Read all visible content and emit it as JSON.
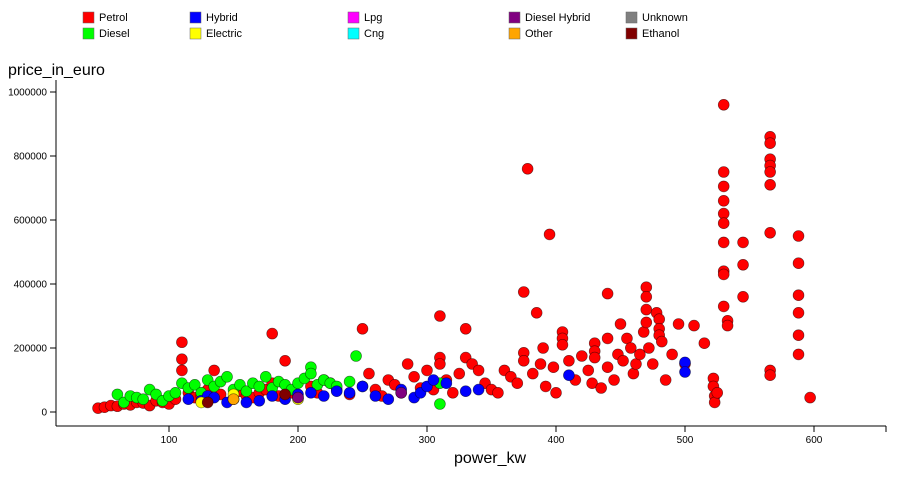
{
  "chart_data": {
    "type": "scatter",
    "xlabel": "power_kw",
    "ylabel": "price_in_euro",
    "xlim": [
      0,
      645
    ],
    "ylim": [
      -40000,
      1050000
    ],
    "x_ticks": [
      100,
      200,
      300,
      400,
      500,
      600
    ],
    "y_ticks": [
      0,
      200000,
      400000,
      600000,
      800000,
      1000000
    ],
    "x_tick_labels": [
      "100",
      "200",
      "300",
      "400",
      "500",
      "600"
    ],
    "y_tick_labels": [
      "0",
      "200000",
      "400000",
      "600000",
      "800000",
      "1000000"
    ],
    "grid": false,
    "legend_position": "top",
    "legend": [
      {
        "name": "Petrol",
        "color": "#ff0000"
      },
      {
        "name": "Hybrid",
        "color": "#0000ff"
      },
      {
        "name": "Lpg",
        "color": "#ff00ff"
      },
      {
        "name": "Diesel Hybrid",
        "color": "#800080"
      },
      {
        "name": "Unknown",
        "color": "#808080"
      },
      {
        "name": "Diesel",
        "color": "#00ff00"
      },
      {
        "name": "Electric",
        "color": "#ffff00"
      },
      {
        "name": "Cng",
        "color": "#00ffff"
      },
      {
        "name": "Other",
        "color": "#ffa500"
      },
      {
        "name": "Ethanol",
        "color": "#800000"
      }
    ],
    "series": [
      {
        "fuel": "Petrol",
        "color": "#ff0000",
        "points": [
          [
            45,
            12000
          ],
          [
            50,
            15000
          ],
          [
            55,
            20000
          ],
          [
            60,
            18000
          ],
          [
            65,
            25000
          ],
          [
            70,
            22000
          ],
          [
            75,
            30000
          ],
          [
            80,
            28000
          ],
          [
            85,
            20000
          ],
          [
            90,
            35000
          ],
          [
            95,
            30000
          ],
          [
            100,
            25000
          ],
          [
            105,
            40000
          ],
          [
            110,
            218000
          ],
          [
            110,
            165000
          ],
          [
            110,
            130000
          ],
          [
            115,
            60000
          ],
          [
            120,
            45000
          ],
          [
            125,
            50000
          ],
          [
            130,
            70000
          ],
          [
            135,
            130000
          ],
          [
            140,
            55000
          ],
          [
            150,
            40000
          ],
          [
            155,
            65000
          ],
          [
            160,
            50000
          ],
          [
            165,
            45000
          ],
          [
            170,
            60000
          ],
          [
            175,
            70000
          ],
          [
            180,
            245000
          ],
          [
            180,
            90000
          ],
          [
            185,
            50000
          ],
          [
            190,
            160000
          ],
          [
            195,
            60000
          ],
          [
            200,
            45000
          ],
          [
            210,
            80000
          ],
          [
            215,
            60000
          ],
          [
            220,
            100000
          ],
          [
            225,
            90000
          ],
          [
            230,
            70000
          ],
          [
            240,
            55000
          ],
          [
            250,
            260000
          ],
          [
            255,
            120000
          ],
          [
            260,
            70000
          ],
          [
            265,
            50000
          ],
          [
            270,
            100000
          ],
          [
            275,
            85000
          ],
          [
            280,
            60000
          ],
          [
            285,
            150000
          ],
          [
            290,
            110000
          ],
          [
            295,
            75000
          ],
          [
            300,
            130000
          ],
          [
            305,
            70000
          ],
          [
            310,
            300000
          ],
          [
            310,
            170000
          ],
          [
            310,
            150000
          ],
          [
            315,
            100000
          ],
          [
            320,
            60000
          ],
          [
            325,
            120000
          ],
          [
            330,
            260000
          ],
          [
            330,
            170000
          ],
          [
            335,
            150000
          ],
          [
            340,
            130000
          ],
          [
            345,
            90000
          ],
          [
            350,
            70000
          ],
          [
            355,
            60000
          ],
          [
            360,
            130000
          ],
          [
            365,
            110000
          ],
          [
            370,
            90000
          ],
          [
            375,
            375000
          ],
          [
            375,
            185000
          ],
          [
            375,
            160000
          ],
          [
            378,
            760000
          ],
          [
            382,
            120000
          ],
          [
            385,
            310000
          ],
          [
            388,
            150000
          ],
          [
            390,
            200000
          ],
          [
            392,
            80000
          ],
          [
            395,
            555000
          ],
          [
            398,
            140000
          ],
          [
            400,
            60000
          ],
          [
            405,
            250000
          ],
          [
            405,
            230000
          ],
          [
            405,
            210000
          ],
          [
            410,
            160000
          ],
          [
            415,
            100000
          ],
          [
            420,
            175000
          ],
          [
            425,
            130000
          ],
          [
            428,
            90000
          ],
          [
            430,
            215000
          ],
          [
            430,
            190000
          ],
          [
            430,
            170000
          ],
          [
            435,
            75000
          ],
          [
            440,
            370000
          ],
          [
            440,
            230000
          ],
          [
            440,
            140000
          ],
          [
            445,
            100000
          ],
          [
            448,
            180000
          ],
          [
            450,
            275000
          ],
          [
            452,
            160000
          ],
          [
            455,
            230000
          ],
          [
            458,
            200000
          ],
          [
            460,
            120000
          ],
          [
            462,
            150000
          ],
          [
            465,
            180000
          ],
          [
            468,
            250000
          ],
          [
            470,
            390000
          ],
          [
            470,
            360000
          ],
          [
            470,
            320000
          ],
          [
            470,
            280000
          ],
          [
            472,
            200000
          ],
          [
            475,
            150000
          ],
          [
            478,
            310000
          ],
          [
            480,
            290000
          ],
          [
            480,
            260000
          ],
          [
            480,
            240000
          ],
          [
            482,
            220000
          ],
          [
            485,
            100000
          ],
          [
            490,
            180000
          ],
          [
            495,
            275000
          ],
          [
            500,
            150000
          ],
          [
            507,
            270000
          ],
          [
            515,
            215000
          ],
          [
            522,
            105000
          ],
          [
            522,
            80000
          ],
          [
            523,
            50000
          ],
          [
            523,
            30000
          ],
          [
            525,
            60000
          ],
          [
            530,
            960000
          ],
          [
            530,
            750000
          ],
          [
            530,
            705000
          ],
          [
            530,
            660000
          ],
          [
            530,
            620000
          ],
          [
            530,
            590000
          ],
          [
            530,
            530000
          ],
          [
            530,
            440000
          ],
          [
            530,
            430000
          ],
          [
            530,
            330000
          ],
          [
            533,
            285000
          ],
          [
            533,
            270000
          ],
          [
            545,
            530000
          ],
          [
            545,
            460000
          ],
          [
            545,
            360000
          ],
          [
            566,
            860000
          ],
          [
            566,
            840000
          ],
          [
            566,
            790000
          ],
          [
            566,
            770000
          ],
          [
            566,
            750000
          ],
          [
            566,
            710000
          ],
          [
            566,
            560000
          ],
          [
            566,
            130000
          ],
          [
            566,
            115000
          ],
          [
            588,
            550000
          ],
          [
            588,
            465000
          ],
          [
            588,
            365000
          ],
          [
            588,
            310000
          ],
          [
            588,
            240000
          ],
          [
            588,
            180000
          ],
          [
            597,
            45000
          ]
        ]
      },
      {
        "fuel": "Diesel",
        "color": "#00ff00",
        "points": [
          [
            60,
            55000
          ],
          [
            65,
            30000
          ],
          [
            70,
            50000
          ],
          [
            75,
            45000
          ],
          [
            80,
            40000
          ],
          [
            85,
            70000
          ],
          [
            90,
            55000
          ],
          [
            95,
            35000
          ],
          [
            100,
            50000
          ],
          [
            105,
            60000
          ],
          [
            110,
            90000
          ],
          [
            115,
            75000
          ],
          [
            120,
            85000
          ],
          [
            125,
            60000
          ],
          [
            130,
            100000
          ],
          [
            135,
            80000
          ],
          [
            140,
            95000
          ],
          [
            145,
            110000
          ],
          [
            150,
            70000
          ],
          [
            155,
            85000
          ],
          [
            160,
            65000
          ],
          [
            165,
            90000
          ],
          [
            170,
            80000
          ],
          [
            175,
            110000
          ],
          [
            180,
            75000
          ],
          [
            185,
            95000
          ],
          [
            190,
            85000
          ],
          [
            195,
            70000
          ],
          [
            200,
            90000
          ],
          [
            205,
            105000
          ],
          [
            210,
            140000
          ],
          [
            210,
            120000
          ],
          [
            215,
            85000
          ],
          [
            220,
            100000
          ],
          [
            225,
            90000
          ],
          [
            230,
            80000
          ],
          [
            240,
            95000
          ],
          [
            245,
            175000
          ],
          [
            250,
            80000
          ],
          [
            310,
            90000
          ],
          [
            310,
            25000
          ]
        ]
      },
      {
        "fuel": "Hybrid",
        "color": "#0000ff",
        "points": [
          [
            115,
            40000
          ],
          [
            125,
            35000
          ],
          [
            130,
            50000
          ],
          [
            135,
            45000
          ],
          [
            145,
            30000
          ],
          [
            150,
            40000
          ],
          [
            160,
            30000
          ],
          [
            170,
            35000
          ],
          [
            180,
            50000
          ],
          [
            190,
            40000
          ],
          [
            200,
            55000
          ],
          [
            210,
            60000
          ],
          [
            220,
            50000
          ],
          [
            230,
            65000
          ],
          [
            240,
            60000
          ],
          [
            250,
            80000
          ],
          [
            260,
            50000
          ],
          [
            270,
            40000
          ],
          [
            280,
            70000
          ],
          [
            290,
            45000
          ],
          [
            295,
            60000
          ],
          [
            300,
            80000
          ],
          [
            305,
            100000
          ],
          [
            315,
            90000
          ],
          [
            330,
            65000
          ],
          [
            340,
            70000
          ],
          [
            410,
            115000
          ],
          [
            500,
            155000
          ],
          [
            500,
            125000
          ]
        ]
      },
      {
        "fuel": "Electric",
        "color": "#ffff00",
        "points": [
          [
            125,
            30000
          ],
          [
            150,
            55000
          ],
          [
            200,
            40000
          ]
        ]
      },
      {
        "fuel": "Diesel Hybrid",
        "color": "#800080",
        "points": [
          [
            200,
            45000
          ],
          [
            280,
            60000
          ]
        ]
      },
      {
        "fuel": "Other",
        "color": "#ffa500",
        "points": [
          [
            150,
            40000
          ]
        ]
      },
      {
        "fuel": "Ethanol",
        "color": "#800000",
        "points": [
          [
            130,
            30000
          ],
          [
            190,
            55000
          ]
        ]
      }
    ]
  }
}
